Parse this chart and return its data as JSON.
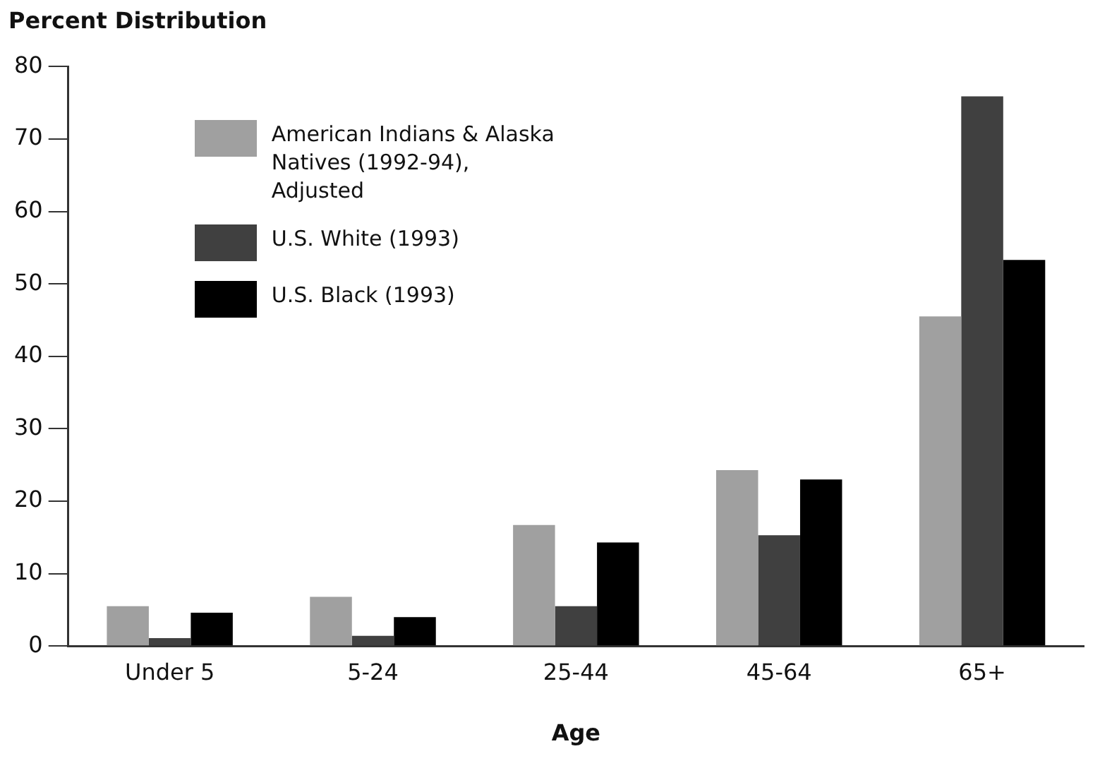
{
  "chart_data": {
    "type": "bar",
    "title": "Percent Distribution",
    "xlabel": "Age",
    "categories": [
      "Under 5",
      "5-24",
      "25-44",
      "45-64",
      "65+"
    ],
    "series": [
      {
        "name": "American Indians & Alaska Natives (1992-94), Adjusted",
        "color": "#a0a0a0",
        "values": [
          5.5,
          6.8,
          16.7,
          24.3,
          45.5
        ]
      },
      {
        "name": "U.S. White (1993)",
        "color": "#404040",
        "values": [
          1.1,
          1.4,
          5.5,
          15.3,
          75.9
        ]
      },
      {
        "name": "U.S. Black (1993)",
        "color": "#000000",
        "values": [
          4.6,
          4.0,
          14.3,
          23.0,
          53.3
        ]
      }
    ],
    "ylim": [
      0,
      80
    ],
    "yticks": [
      0,
      10,
      20,
      30,
      40,
      50,
      60,
      70,
      80
    ],
    "grid": false,
    "legend": "top left"
  }
}
